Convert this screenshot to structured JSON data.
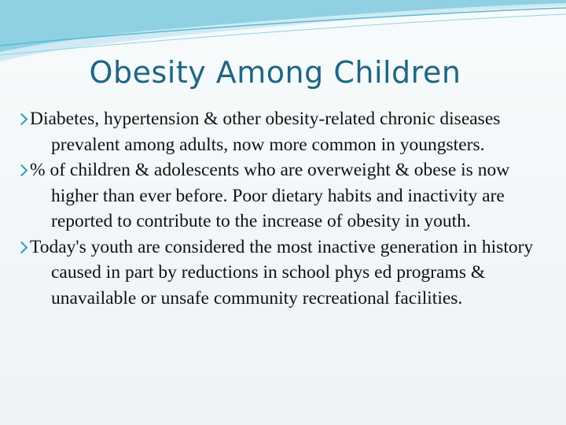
{
  "slide": {
    "title": "Obesity Among Children",
    "bullets": [
      "Diabetes, hypertension & other obesity-related chronic diseases prevalent among adults, now more common in youngsters.",
      "% of children & adolescents who are overweight & obese is now higher than ever before. Poor dietary habits and inactivity are reported to contribute to the increase of obesity in youth.",
      "Today's youth are considered the most inactive generation in history caused in part by reductions in school phys ed programs & unavailable or unsafe community recreational facilities."
    ]
  }
}
